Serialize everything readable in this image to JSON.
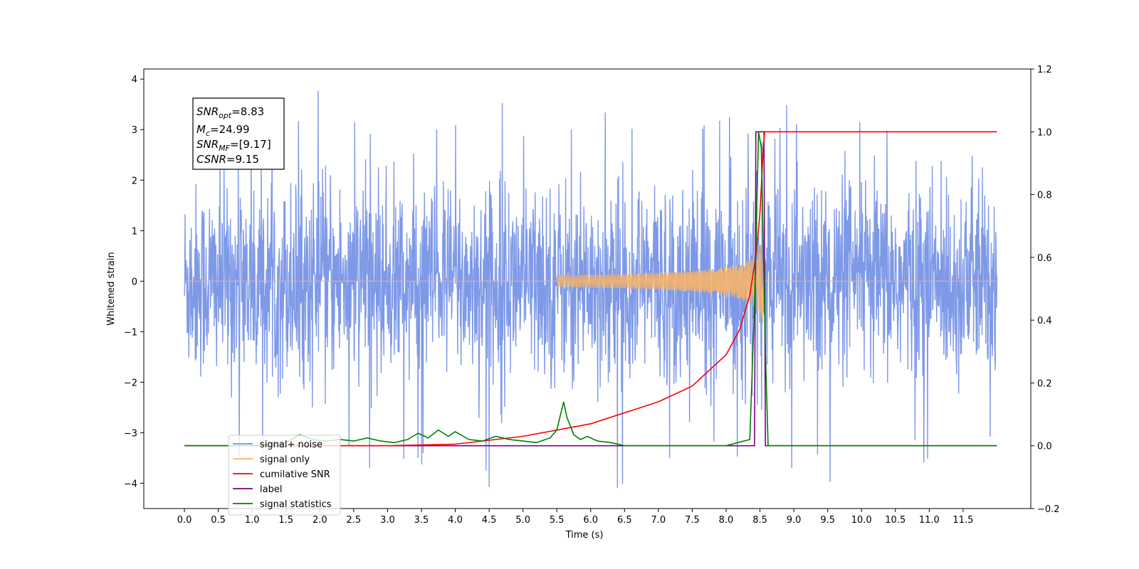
{
  "chart_data": {
    "type": "line",
    "xlabel": "Time (s)",
    "ylabel": "Whitened strain",
    "y2label": "",
    "xlim": [
      -0.6,
      12.5
    ],
    "ylim": [
      -4.5,
      4.2
    ],
    "y2lim": [
      -0.2,
      1.2
    ],
    "x_ticks": [
      "0.0",
      "0.5",
      "1.0",
      "1.5",
      "2.0",
      "2.5",
      "3.0",
      "3.5",
      "4.0",
      "4.5",
      "5.0",
      "5.5",
      "6.0",
      "6.5",
      "7.0",
      "7.5",
      "8.0",
      "8.5",
      "9.0",
      "9.5",
      "10.0",
      "10.5",
      "11.0",
      "11.5"
    ],
    "y_ticks": [
      "4",
      "3",
      "2",
      "1",
      "0",
      "−1",
      "−2",
      "−3",
      "−4"
    ],
    "y2_ticks": [
      "1.2",
      "1.0",
      "0.8",
      "0.6",
      "0.4",
      "0.2",
      "0.0",
      "−0.2"
    ],
    "grid": false,
    "legend_position": "lower-left",
    "annotation": {
      "snr_opt": "=8.83",
      "mc": "=24.99",
      "snr_mf": "=[9.17]",
      "csnr": "=9.15"
    },
    "series": [
      {
        "name": "signal+ noise",
        "color": "#7793e6",
        "axis": "left",
        "duration": 12.0,
        "noise_std": 0.95,
        "spike_range": [
          -4.1,
          3.8
        ]
      },
      {
        "name": "signal only",
        "color": "#f5b36a",
        "axis": "left",
        "chirp_start": 5.5,
        "chirp_end": 8.55,
        "peak_amplitude": 0.9
      },
      {
        "name": "cumilative SNR",
        "color": "#ff0000",
        "axis": "right",
        "x": [
          0.0,
          2.0,
          3.0,
          4.0,
          5.0,
          6.0,
          7.0,
          7.5,
          8.0,
          8.2,
          8.35,
          8.45,
          8.5,
          8.55,
          8.57,
          12.0
        ],
        "y": [
          0.0,
          0.0,
          0.0,
          0.005,
          0.03,
          0.07,
          0.14,
          0.19,
          0.29,
          0.37,
          0.48,
          0.62,
          0.74,
          0.95,
          1.0,
          1.0
        ]
      },
      {
        "name": "label",
        "color": "#800080",
        "axis": "right",
        "x": [
          0.0,
          8.42,
          8.44,
          8.56,
          8.58,
          12.0
        ],
        "y": [
          0.0,
          0.0,
          1.0,
          1.0,
          0.0,
          0.0
        ]
      },
      {
        "name": "signal statistics",
        "color": "#008000",
        "axis": "right",
        "x": [
          0.0,
          0.5,
          1.0,
          1.5,
          1.7,
          1.9,
          2.1,
          2.3,
          2.5,
          2.7,
          2.9,
          3.1,
          3.3,
          3.45,
          3.6,
          3.75,
          3.9,
          4.0,
          4.2,
          4.4,
          4.6,
          4.8,
          5.0,
          5.2,
          5.4,
          5.5,
          5.6,
          5.65,
          5.75,
          5.85,
          5.95,
          6.1,
          6.3,
          6.5,
          7.0,
          8.0,
          8.35,
          8.42,
          8.48,
          8.52,
          8.58,
          8.62,
          12.0
        ],
        "y": [
          0.0,
          0.0,
          0.0,
          0.01,
          0.035,
          0.02,
          0.015,
          0.02,
          0.015,
          0.025,
          0.015,
          0.01,
          0.02,
          0.04,
          0.025,
          0.05,
          0.03,
          0.045,
          0.02,
          0.015,
          0.03,
          0.02,
          0.015,
          0.01,
          0.025,
          0.05,
          0.14,
          0.09,
          0.035,
          0.02,
          0.03,
          0.015,
          0.01,
          0.0,
          0.0,
          0.0,
          0.02,
          0.45,
          1.0,
          0.95,
          0.3,
          0.0,
          0.0
        ]
      }
    ]
  }
}
